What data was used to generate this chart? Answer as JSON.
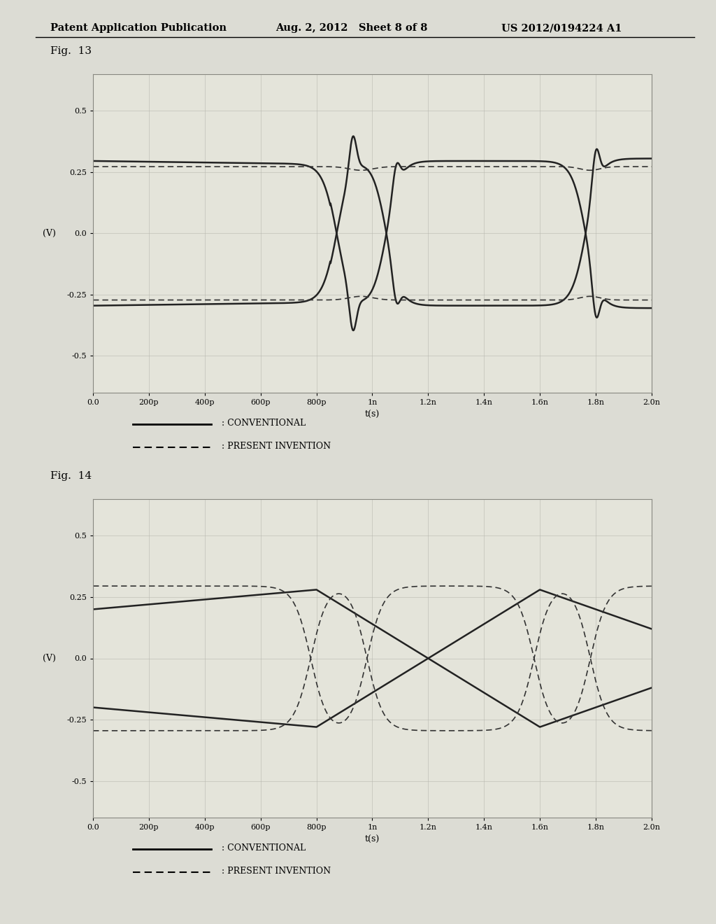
{
  "header_left": "Patent Application Publication",
  "header_mid": "Aug. 2, 2012   Sheet 8 of 8",
  "header_right": "US 2012/0194224 A1",
  "fig13_label": "Fig.  13",
  "fig14_label": "Fig.  14",
  "ylabel": "(V)",
  "xlabel": "t(s)",
  "xtick_labels": [
    "0.0",
    "200p",
    "400p",
    "600p",
    "800p",
    "1n",
    "1.2n",
    "1.4n",
    "1.6n",
    "1.8n",
    "2.0n"
  ],
  "ytick_labels": [
    "-0.5",
    "-0.25",
    "0.0",
    "0.25",
    "0.5"
  ],
  "ylim": [
    -0.65,
    0.65
  ],
  "xlim": [
    0.0,
    2.0
  ],
  "legend_conventional": ": CONVENTIONAL",
  "legend_invention": ": PRESENT INVENTION",
  "bg_color": "#e8e8e0",
  "plot_bg": "#e8e8de"
}
